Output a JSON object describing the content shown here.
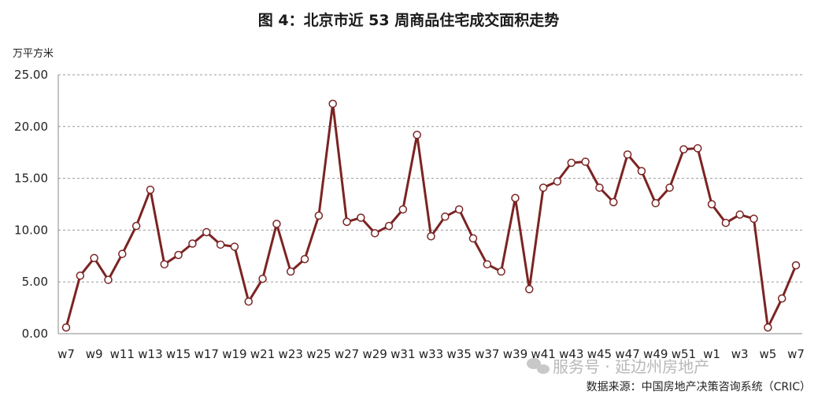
{
  "chart_data": {
    "type": "line",
    "title": "图 4：北京市近 53 周商品住宅成交面积走势",
    "ylabel": "万平方米",
    "xlabel": "",
    "ylim": [
      0,
      25
    ],
    "yticks": [
      "0.00",
      "5.00",
      "10.00",
      "15.00",
      "20.00",
      "25.00"
    ],
    "grid": true,
    "legend": "none",
    "x": [
      "w7",
      "w8",
      "w9",
      "w10",
      "w11",
      "w12",
      "w13",
      "w14",
      "w15",
      "w16",
      "w17",
      "w18",
      "w19",
      "w20",
      "w21",
      "w22",
      "w23",
      "w24",
      "w25",
      "w26",
      "w27",
      "w28",
      "w29",
      "w30",
      "w31",
      "w32",
      "w33",
      "w34",
      "w35",
      "w36",
      "w37",
      "w38",
      "w39",
      "w40",
      "w41",
      "w42",
      "w43",
      "w44",
      "w45",
      "w46",
      "w47",
      "w48",
      "w49",
      "w50",
      "w51",
      "w52",
      "w1",
      "w2",
      "w3",
      "w4",
      "w5",
      "w6",
      "w7"
    ],
    "x_tick_labels": [
      "w7",
      "w9",
      "w11",
      "w13",
      "w15",
      "w17",
      "w19",
      "w21",
      "w23",
      "w25",
      "w27",
      "w29",
      "w31",
      "w33",
      "w35",
      "w37",
      "w39",
      "w41",
      "w43",
      "w45",
      "w47",
      "w49",
      "w51",
      "w1",
      "w3",
      "w5",
      "w7"
    ],
    "series": [
      {
        "values": [
          0.6,
          5.6,
          7.3,
          5.2,
          7.7,
          10.4,
          13.9,
          6.7,
          7.6,
          8.7,
          9.8,
          8.6,
          8.4,
          3.1,
          5.3,
          10.6,
          6.0,
          7.2,
          11.4,
          22.2,
          10.8,
          11.2,
          9.7,
          10.4,
          12.0,
          19.2,
          9.4,
          11.3,
          12.0,
          9.2,
          6.7,
          6.0,
          13.1,
          4.3,
          14.1,
          14.7,
          16.5,
          16.6,
          14.1,
          12.7,
          17.3,
          15.7,
          12.6,
          14.1,
          17.8,
          17.9,
          12.5,
          10.7,
          11.5,
          11.1,
          0.6,
          3.4,
          6.6
        ],
        "color": "#7b2423"
      }
    ]
  },
  "source": "数据来源：中国房地产决策咨询系统（CRIC）",
  "watermark": "服务号 · 延边州房地产"
}
